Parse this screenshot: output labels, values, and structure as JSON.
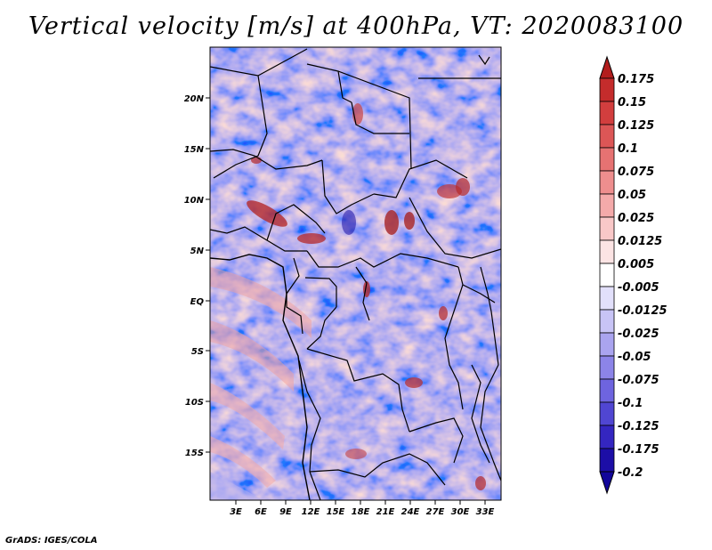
{
  "title": "Vertical velocity [m/s] at 400hPa, VT: 2020083100",
  "credit": "GrADS: IGES/COLA",
  "map": {
    "lon_range": [
      0,
      35
    ],
    "lat_range": [
      -20,
      25
    ],
    "field": "vertical velocity",
    "units": "m/s",
    "level": "400hPa",
    "valid_time": "2020083100"
  },
  "axes": {
    "x_ticks": [
      "3E",
      "6E",
      "9E",
      "12E",
      "15E",
      "18E",
      "21E",
      "24E",
      "27E",
      "30E",
      "33E"
    ],
    "y_ticks": [
      "20N",
      "15N",
      "10N",
      "5N",
      "EQ",
      "5S",
      "10S",
      "15S"
    ]
  },
  "colorbar": {
    "labels": [
      "0.175",
      "0.15",
      "0.125",
      "0.1",
      "0.075",
      "0.05",
      "0.025",
      "0.0125",
      "0.005",
      "-0.005",
      "-0.0125",
      "-0.025",
      "-0.05",
      "-0.075",
      "-0.1",
      "-0.125",
      "-0.175",
      "-0.2"
    ],
    "colors": [
      "#b21d1d",
      "#c42c2c",
      "#d23e3e",
      "#dc5656",
      "#e67272",
      "#ee8e8e",
      "#f4aaaa",
      "#f9c8c8",
      "#fce4e4",
      "#ffffff",
      "#e2e0fb",
      "#c8c4f6",
      "#aaa4ef",
      "#8c84e8",
      "#6e64df",
      "#5046d2",
      "#3426c0",
      "#1c0ea6",
      "#12069a"
    ]
  }
}
